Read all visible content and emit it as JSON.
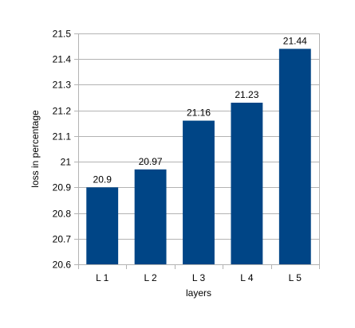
{
  "chart_data": {
    "type": "bar",
    "categories": [
      "L 1",
      "L 2",
      "L 3",
      "L 4",
      "L 5"
    ],
    "values": [
      20.9,
      20.97,
      21.16,
      21.23,
      21.44
    ],
    "data_labels": [
      "20.9",
      "20.97",
      "21.16",
      "21.23",
      "21.44"
    ],
    "xlabel": "layers",
    "ylabel": "loss in percentage",
    "ylim": [
      20.6,
      21.5
    ],
    "yticks": [
      20.6,
      20.7,
      20.8,
      20.9,
      21,
      21.1,
      21.2,
      21.3,
      21.4,
      21.5
    ],
    "ytick_labels": [
      "20.6",
      "20.7",
      "20.8",
      "20.9",
      "21",
      "21.1",
      "21.2",
      "21.3",
      "21.4",
      "21.5"
    ],
    "grid": true,
    "legend": "none",
    "bar_color": "#004586",
    "grid_color": "#b3b3b3"
  }
}
